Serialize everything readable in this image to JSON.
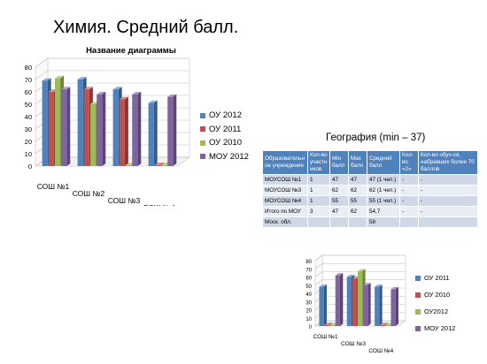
{
  "slide": {
    "title": "Химия. Средний балл."
  },
  "chart_data": [
    {
      "type": "bar",
      "title": "Название диаграммы",
      "categories": [
        "СОШ №1",
        "СОШ №2",
        "СОШ №3",
        "ВСШ №4"
      ],
      "series": [
        {
          "name": "ОУ 2012",
          "color": "#4f81bd",
          "values": [
            69,
            70,
            62,
            51
          ]
        },
        {
          "name": "ОУ 2011",
          "color": "#c0504d",
          "values": [
            60,
            62,
            54,
            0
          ]
        },
        {
          "name": "ОУ 2010",
          "color": "#9bbb59",
          "values": [
            71,
            50,
            0,
            0
          ]
        },
        {
          "name": "МОУ 2012",
          "color": "#8064a2",
          "values": [
            62,
            58,
            58,
            56
          ]
        }
      ],
      "yticks": [
        "0",
        "10",
        "20",
        "30",
        "40",
        "50",
        "60",
        "70",
        "80"
      ],
      "ylim": [
        0,
        80
      ],
      "xlabel": "",
      "ylabel": "",
      "grid": true,
      "legend": "right"
    },
    {
      "type": "bar",
      "title": "",
      "categories": [
        "СОШ №1",
        "СОШ №3",
        "СОШ №4"
      ],
      "series": [
        {
          "name": "ОУ 2011",
          "color": "#4f81bd",
          "values": [
            48,
            60,
            48
          ]
        },
        {
          "name": "ОУ 2010",
          "color": "#c0504d",
          "values": [
            0,
            58,
            0
          ]
        },
        {
          "name": "ОУ2012",
          "color": "#9bbb59",
          "values": [
            0,
            67,
            0
          ]
        },
        {
          "name": "МОУ 2012",
          "color": "#8064a2",
          "values": [
            62,
            50,
            45
          ]
        }
      ],
      "yticks": [
        "0",
        "10",
        "20",
        "30",
        "40",
        "50",
        "60",
        "70",
        "80"
      ],
      "ylim": [
        0,
        80
      ],
      "xlabel": "",
      "ylabel": "",
      "grid": true,
      "legend": "right"
    }
  ],
  "geography": {
    "title": "География (min – 37)",
    "headers": [
      "Образовательн ое учреждение",
      "Кол-во участн иков",
      "Min балл",
      "Max балл",
      "Средний балл",
      "Кол-во «2»",
      "Кол-во обуч-ся, набравших более 70 баллов"
    ],
    "rows": [
      [
        "МОУСОШ №1",
        "1",
        "47",
        "47",
        "47 (1 чел.)",
        "-",
        "-"
      ],
      [
        "МОУСОШ №3",
        "1",
        "62",
        "62",
        "62 (1 чел.)",
        "-",
        "-"
      ],
      [
        "МОУСОШ №4",
        "1",
        "55",
        "55",
        "55 (1 чел.)",
        "-",
        "-"
      ],
      [
        "Итого по МОУ",
        "3",
        "47",
        "62",
        "54,7",
        "-",
        "-"
      ],
      [
        "Моск. обл.",
        "",
        "",
        "",
        "58",
        "",
        ""
      ]
    ]
  }
}
